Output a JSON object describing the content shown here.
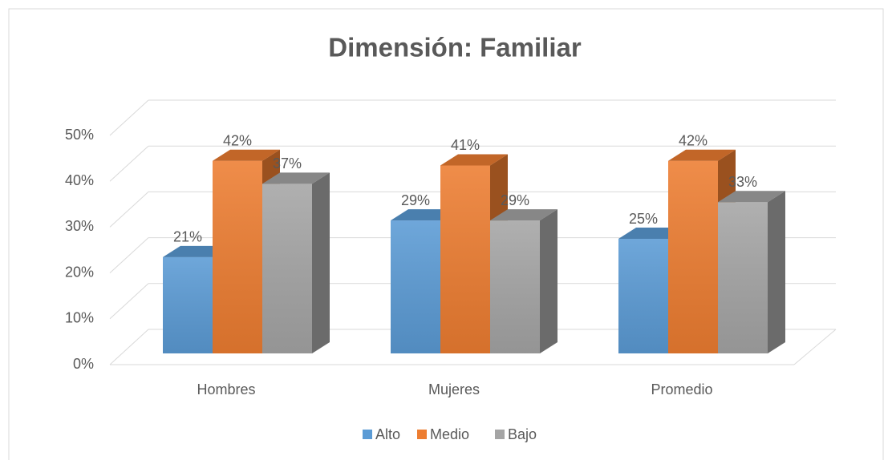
{
  "chart_data": {
    "type": "bar3d",
    "title": "Dimensión: Familiar",
    "categories": [
      "Hombres",
      "Mujeres",
      "Promedio"
    ],
    "series": [
      {
        "name": "Alto",
        "color": "#5b9bd5",
        "values": [
          21,
          29,
          25
        ],
        "value_labels": [
          "21%",
          "29%",
          "25%"
        ]
      },
      {
        "name": "Medio",
        "color": "#ed7d31",
        "values": [
          42,
          41,
          42
        ],
        "value_labels": [
          "42%",
          "41%",
          "42%"
        ]
      },
      {
        "name": "Bajo",
        "color": "#a5a5a5",
        "values": [
          37,
          29,
          33
        ],
        "value_labels": [
          "37%",
          "29%",
          "33%"
        ]
      }
    ],
    "ylim": [
      0,
      50
    ],
    "yticks": [
      {
        "value": 0,
        "label": "0%"
      },
      {
        "value": 10,
        "label": "10%"
      },
      {
        "value": 20,
        "label": "20%"
      },
      {
        "value": 30,
        "label": "30%"
      },
      {
        "value": 40,
        "label": "40%"
      },
      {
        "value": 50,
        "label": "50%"
      }
    ],
    "grid": true,
    "legend": "bottom"
  }
}
